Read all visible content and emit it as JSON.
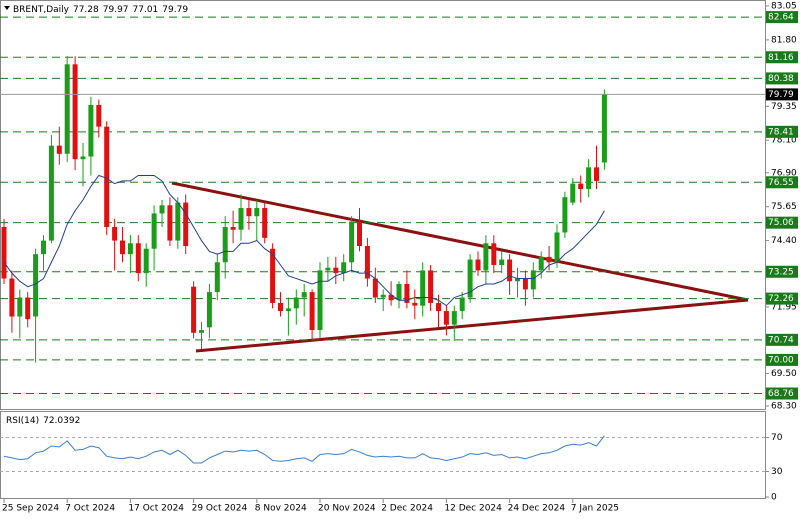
{
  "chart_data": [
    {
      "type": "candlestick",
      "title": "BRENT,Daily",
      "categories": [
        "25 Sep 2024",
        null,
        null,
        null,
        null,
        null,
        null,
        null,
        "7 Oct 2024",
        null,
        null,
        null,
        null,
        null,
        null,
        null,
        "17 Oct 2024",
        null,
        null,
        null,
        null,
        null,
        null,
        null,
        "29 Oct 2024",
        null,
        null,
        null,
        null,
        null,
        null,
        null,
        "8 Nov 2024",
        null,
        null,
        null,
        null,
        null,
        null,
        null,
        "20 Nov 2024",
        null,
        null,
        null,
        null,
        null,
        null,
        null,
        "2 Dec 2024",
        null,
        null,
        null,
        null,
        null,
        null,
        null,
        "12 Dec 2024",
        null,
        null,
        null,
        null,
        null,
        null,
        null,
        "24 Dec 2024",
        null,
        null,
        null,
        null,
        null,
        null,
        null,
        "7 Jan 2025",
        null,
        null,
        null,
        null
      ],
      "open": [
        74.9,
        73.0,
        71.6,
        72.3,
        71.6,
        73.9,
        74.4,
        77.9,
        77.6,
        80.9,
        77.4,
        77.5,
        79.4,
        78.6,
        74.9,
        74.4,
        73.9,
        74.3,
        73.2,
        74.1,
        75.4,
        75.7,
        74.4,
        75.8,
        72.7,
        71.0,
        71.2,
        72.5,
        73.6,
        74.9,
        74.8,
        75.6,
        75.3,
        75.6,
        74.1,
        72.1,
        71.8,
        71.9,
        72.3,
        72.5,
        71.1,
        73.3,
        73.4,
        73.2,
        73.6,
        75.1,
        74.2,
        73.0,
        72.3,
        72.4,
        72.2,
        72.8,
        72.1,
        72.0,
        73.3,
        72.1,
        71.8,
        71.3,
        71.8,
        72.3,
        73.7,
        73.3,
        74.3,
        73.5,
        73.7,
        72.9,
        73.0,
        72.6,
        73.3,
        73.8,
        73.6,
        74.7,
        75.8,
        76.5,
        76.3,
        77.1,
        77.28
      ],
      "high": [
        75.2,
        73.3,
        72.6,
        72.5,
        74.1,
        74.6,
        78.3,
        78.6,
        81.2,
        81.2,
        78.0,
        79.7,
        79.6,
        78.8,
        75.2,
        74.9,
        74.6,
        74.6,
        74.3,
        75.7,
        75.9,
        76.0,
        76.0,
        76.1,
        72.9,
        71.4,
        72.8,
        73.9,
        75.3,
        75.5,
        76.1,
        75.9,
        75.9,
        75.8,
        74.3,
        72.5,
        72.3,
        72.6,
        72.8,
        72.6,
        73.6,
        73.8,
        73.8,
        73.9,
        75.3,
        75.6,
        74.5,
        73.4,
        72.6,
        72.9,
        72.9,
        73.3,
        72.6,
        73.6,
        73.5,
        72.4,
        72.0,
        72.0,
        72.5,
        73.9,
        74.0,
        74.6,
        74.6,
        74.0,
        73.9,
        73.4,
        73.3,
        73.6,
        74.0,
        74.2,
        75.0,
        76.2,
        76.7,
        76.8,
        77.4,
        77.9,
        79.97
      ],
      "low": [
        72.8,
        71.0,
        70.8,
        71.2,
        69.9,
        73.3,
        74.3,
        77.2,
        77.3,
        77.0,
        76.4,
        76.8,
        78.2,
        74.6,
        73.3,
        73.6,
        73.2,
        72.9,
        72.7,
        73.3,
        74.9,
        74.2,
        74.1,
        73.9,
        70.8,
        70.4,
        70.8,
        72.2,
        73.0,
        74.3,
        74.4,
        74.8,
        74.4,
        74.3,
        71.9,
        71.6,
        70.9,
        71.3,
        71.6,
        70.7,
        70.8,
        72.9,
        72.8,
        72.9,
        73.3,
        74.0,
        72.7,
        72.1,
        71.8,
        72.0,
        71.9,
        71.9,
        71.5,
        71.6,
        71.8,
        71.2,
        70.9,
        70.7,
        71.5,
        72.1,
        73.1,
        72.8,
        73.2,
        73.2,
        72.4,
        72.3,
        72.0,
        72.3,
        73.0,
        73.3,
        73.4,
        74.5,
        75.7,
        75.8,
        76.0,
        76.3,
        77.01
      ],
      "close": [
        73.0,
        71.6,
        72.3,
        71.5,
        73.9,
        74.4,
        77.9,
        77.6,
        80.9,
        77.4,
        77.5,
        79.4,
        78.6,
        74.9,
        74.4,
        73.9,
        74.3,
        73.2,
        74.1,
        75.4,
        75.7,
        74.4,
        75.8,
        74.2,
        71.0,
        71.1,
        72.5,
        73.6,
        74.9,
        74.8,
        75.6,
        75.3,
        75.6,
        74.5,
        72.1,
        71.8,
        71.9,
        72.3,
        72.5,
        71.1,
        73.3,
        73.4,
        73.2,
        73.6,
        75.1,
        74.2,
        73.0,
        72.3,
        72.4,
        72.2,
        72.8,
        72.1,
        72.0,
        73.3,
        72.1,
        71.8,
        71.3,
        71.8,
        72.3,
        73.7,
        73.3,
        74.3,
        73.5,
        73.7,
        72.9,
        73.0,
        72.6,
        73.3,
        73.8,
        73.6,
        74.7,
        76.0,
        76.5,
        76.3,
        77.1,
        76.6,
        79.79
      ],
      "up_color": "#1a9e1a",
      "down_color": "#e01010",
      "ma": {
        "color": "#1f3f8f",
        "values": [
          73.6,
          73.2,
          72.9,
          72.7,
          72.8,
          73.0,
          73.6,
          74.2,
          75.0,
          75.5,
          75.9,
          76.4,
          76.8,
          76.7,
          76.5,
          76.6,
          76.6,
          76.8,
          76.8,
          76.8,
          76.6,
          76.1,
          75.8,
          75.4,
          74.9,
          74.4,
          74.0,
          73.9,
          74.0,
          74.0,
          74.3,
          74.3,
          74.4,
          74.1,
          73.9,
          73.5,
          73.1,
          73.0,
          72.9,
          72.8,
          72.9,
          72.9,
          73.1,
          73.2,
          73.3,
          73.2,
          73.2,
          73.0,
          72.7,
          72.4,
          72.2,
          72.2,
          72.3,
          72.3,
          72.3,
          72.2,
          72.0,
          72.3,
          72.4,
          72.5,
          72.7,
          72.8,
          72.8,
          72.9,
          73.1,
          73.0,
          73.0,
          73.0,
          73.2,
          73.5,
          73.6,
          73.9,
          74.1,
          74.4,
          74.7,
          75.0,
          75.5
        ]
      },
      "ylim": [
        68.3,
        83.05
      ],
      "yticks": [
        83.05,
        {
          "value": 81.8,
          "label": "81.80"
        },
        79.35,
        {
          "value": 78.1,
          "label": "78.10"
        },
        {
          "value": 76.9,
          "label": "76.90"
        },
        75.65,
        {
          "value": 74.4,
          "label": "74.40"
        },
        71.95,
        {
          "value": 69.5,
          "label": "69.50"
        },
        {
          "value": 68.3,
          "label": "68.30"
        }
      ],
      "levels": [
        82.64,
        81.16,
        80.38,
        78.41,
        76.55,
        75.06,
        73.25,
        72.26,
        70.74,
        {
          "value": 70.0,
          "label": "70.00"
        },
        68.76
      ],
      "level_color": "#1a7a1a"
    },
    {
      "type": "line",
      "title": "RSI(14)",
      "values": [
        48,
        46,
        44,
        45,
        52,
        54,
        60,
        59,
        66,
        55,
        56,
        60,
        58,
        48,
        46,
        45,
        47,
        45,
        48,
        53,
        55,
        50,
        55,
        49,
        40,
        40,
        46,
        50,
        54,
        53,
        55,
        54,
        55,
        50,
        43,
        42,
        43,
        45,
        46,
        42,
        50,
        51,
        50,
        51,
        56,
        53,
        49,
        47,
        48,
        47,
        48,
        46,
        46,
        51,
        46,
        45,
        43,
        45,
        47,
        51,
        50,
        52,
        49,
        50,
        46,
        47,
        45,
        48,
        51,
        52,
        55,
        60,
        62,
        61,
        64,
        60,
        72.0392
      ],
      "color": "#3a7fd0",
      "ylim": [
        0,
        100
      ],
      "yticks": [
        70,
        30,
        0
      ],
      "levels": [
        70,
        30
      ]
    }
  ]
}
